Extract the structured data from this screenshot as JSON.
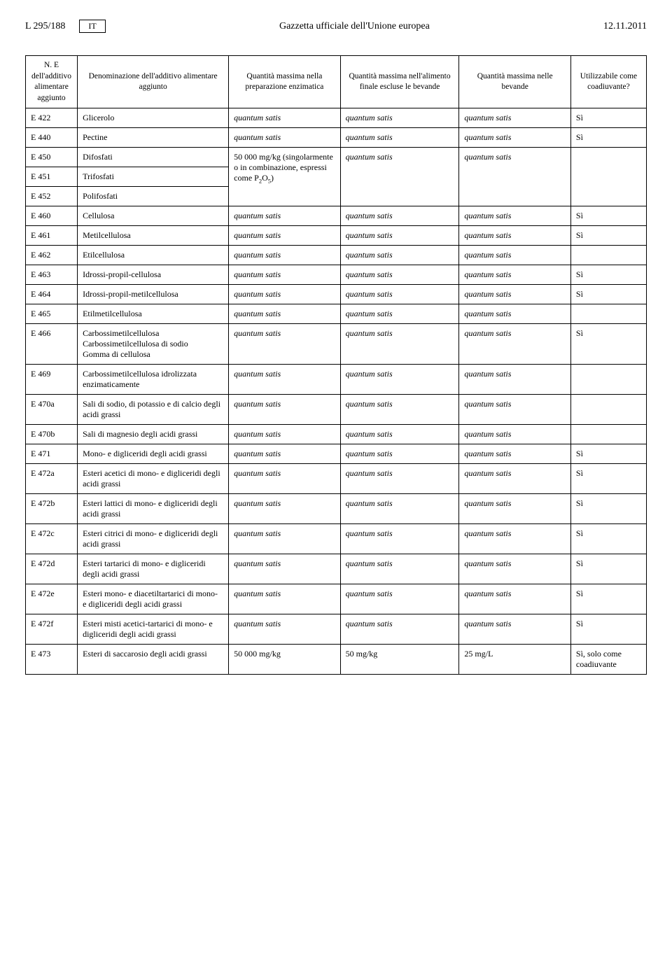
{
  "header": {
    "left_ref": "L 295/188",
    "lang": "IT",
    "center": "Gazzetta ufficiale dell'Unione europea",
    "date": "12.11.2011"
  },
  "columns": {
    "code": "N. E dell'additivo alimentare aggiunto",
    "name": "Denominazione dell'additivo alimentare aggiunto",
    "prep": "Quantità massima nella preparazione enzimatica",
    "food": "Quantità massima nell'alimento finale escluse le bevande",
    "bev": "Quantità massima nelle bevande",
    "adj": "Utilizzabile come coadiuvante?"
  },
  "qs": "quantum satis",
  "si": "Sì",
  "rows": {
    "e422": {
      "code": "E 422",
      "name": "Glicerolo"
    },
    "e440": {
      "code": "E 440",
      "name": "Pectine"
    },
    "e450": {
      "code": "E 450",
      "name": "Difosfati"
    },
    "e451": {
      "code": "E 451",
      "name": "Trifosfati"
    },
    "p2o5_line1": "50 000 mg/kg (singolarmente o in combinazione, espressi come P",
    "p2o5_sub": "2",
    "p2o5_mid": "O",
    "p2o5_sub2": "5",
    "p2o5_end": ")",
    "e452": {
      "code": "E 452",
      "name": "Polifosfati"
    },
    "e460": {
      "code": "E 460",
      "name": "Cellulosa"
    },
    "e461": {
      "code": "E 461",
      "name": "Metilcellulosa"
    },
    "e462": {
      "code": "E 462",
      "name": "Etilcellulosa"
    },
    "e463": {
      "code": "E 463",
      "name": "Idrossi-propil-cellulosa"
    },
    "e464": {
      "code": "E 464",
      "name": "Idrossi-propil-metilcellulosa"
    },
    "e465": {
      "code": "E 465",
      "name": "Etilmetilcellulosa"
    },
    "e466": {
      "code": "E 466",
      "name": "Carbossimetilcellulosa\nCarbossimetilcellulosa di sodio\nGomma di cellulosa"
    },
    "e469": {
      "code": "E 469",
      "name": "Carbossimetilcellulosa idrolizzata enzimaticamente"
    },
    "e470a": {
      "code": "E 470a",
      "name": "Sali di sodio, di potassio e di calcio degli acidi grassi"
    },
    "e470b": {
      "code": "E 470b",
      "name": "Sali di magnesio degli acidi grassi"
    },
    "e471": {
      "code": "E 471",
      "name": "Mono- e digliceridi degli acidi grassi"
    },
    "e472a": {
      "code": "E 472a",
      "name": "Esteri acetici di mono- e digliceridi degli acidi grassi"
    },
    "e472b": {
      "code": "E 472b",
      "name": "Esteri lattici di mono- e digliceridi degli acidi grassi"
    },
    "e472c": {
      "code": "E 472c",
      "name": "Esteri citrici di mono- e digliceridi degli acidi grassi"
    },
    "e472d": {
      "code": "E 472d",
      "name": "Esteri tartarici di mono- e digliceridi degli acidi grassi"
    },
    "e472e": {
      "code": "E 472e",
      "name": "Esteri mono- e diacetiltartarici di mono- e digliceridi degli acidi grassi"
    },
    "e472f": {
      "code": "E 472f",
      "name": "Esteri misti acetici-tartarici di mono- e digliceridi degli acidi grassi"
    },
    "e473": {
      "code": "E 473",
      "name": "Esteri di saccarosio degli acidi grassi",
      "prep": "50 000 mg/kg",
      "food": "50 mg/kg",
      "bev": "25 mg/L",
      "adj": "Sì, solo come coadiuvante"
    }
  }
}
